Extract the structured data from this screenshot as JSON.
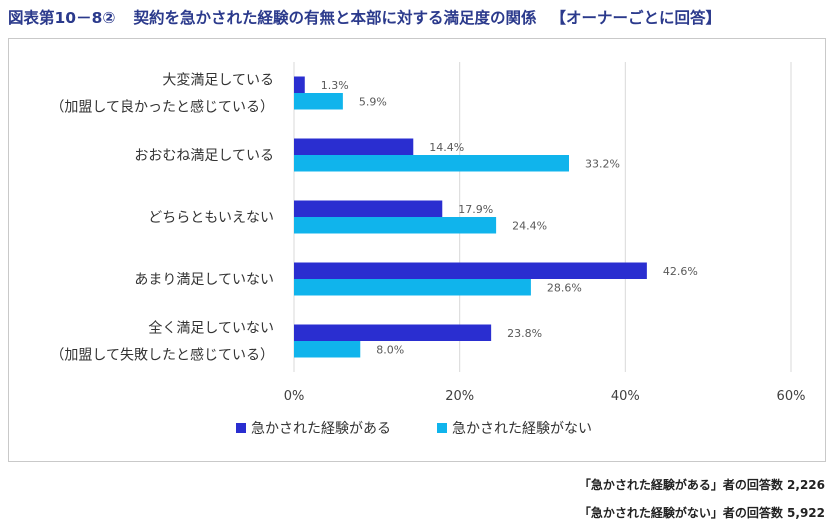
{
  "title": {
    "figure_no": "図表第10－8②",
    "main": "契約を急かされた経験の有無と本部に対する満足度の関係",
    "sub": "【オーナーごとに回答】"
  },
  "notes": [
    "「急かされた経験がある」者の回答数 2,226",
    "「急かされた経験がない」者の回答数 5,922"
  ],
  "colors": {
    "series1": "#2a2ed0",
    "series2": "#10b4ec",
    "grid": "#d9d9d9",
    "text": "#404040"
  },
  "chart_data": {
    "type": "bar",
    "orientation": "horizontal",
    "categories": [
      [
        "大変満足している",
        "（加盟して良かったと感じている）"
      ],
      [
        "おおむね満足している"
      ],
      [
        "どちらともいえない"
      ],
      [
        "あまり満足していない"
      ],
      [
        "全く満足していない",
        "（加盟して失敗したと感じている）"
      ]
    ],
    "series": [
      {
        "name": "急かされた経験がある",
        "values": [
          1.3,
          14.4,
          17.9,
          42.6,
          23.8
        ],
        "labels": [
          "1.3%",
          "14.4%",
          "17.9%",
          "42.6%",
          "23.8%"
        ]
      },
      {
        "name": "急かされた経験がない",
        "values": [
          5.9,
          33.2,
          24.4,
          28.6,
          8.0
        ],
        "labels": [
          "5.9%",
          "33.2%",
          "24.4%",
          "28.6%",
          "8.0%"
        ]
      }
    ],
    "xlim": [
      0,
      60
    ],
    "xticks": [
      "0%",
      "20%",
      "40%",
      "60%"
    ],
    "grid": true,
    "legend": "bottom"
  }
}
